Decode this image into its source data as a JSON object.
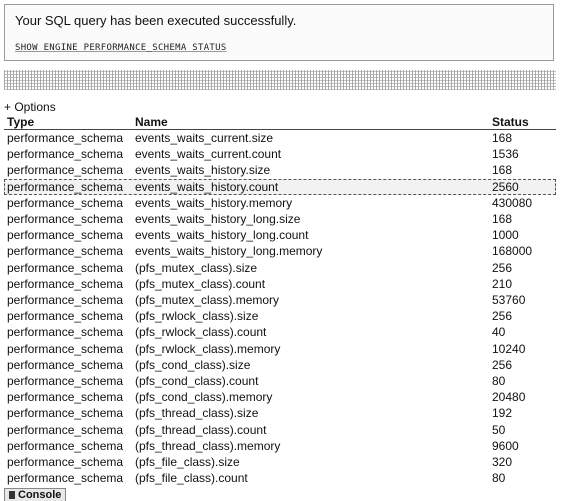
{
  "message": {
    "success_text": "Your SQL query has been executed successfully.",
    "sql": "SHOW ENGINE PERFORMANCE_SCHEMA STATUS"
  },
  "options_label": "+ Options",
  "table": {
    "columns": [
      "Type",
      "Name",
      "Status"
    ],
    "highlighted_row": 3,
    "rows": [
      [
        "performance_schema",
        "events_waits_current.size",
        "168"
      ],
      [
        "performance_schema",
        "events_waits_current.count",
        "1536"
      ],
      [
        "performance_schema",
        "events_waits_history.size",
        "168"
      ],
      [
        "performance_schema",
        "events_waits_history.count",
        "2560"
      ],
      [
        "performance_schema",
        "events_waits_history.memory",
        "430080"
      ],
      [
        "performance_schema",
        "events_waits_history_long.size",
        "168"
      ],
      [
        "performance_schema",
        "events_waits_history_long.count",
        "1000"
      ],
      [
        "performance_schema",
        "events_waits_history_long.memory",
        "168000"
      ],
      [
        "performance_schema",
        "(pfs_mutex_class).size",
        "256"
      ],
      [
        "performance_schema",
        "(pfs_mutex_class).count",
        "210"
      ],
      [
        "performance_schema",
        "(pfs_mutex_class).memory",
        "53760"
      ],
      [
        "performance_schema",
        "(pfs_rwlock_class).size",
        "256"
      ],
      [
        "performance_schema",
        "(pfs_rwlock_class).count",
        "40"
      ],
      [
        "performance_schema",
        "(pfs_rwlock_class).memory",
        "10240"
      ],
      [
        "performance_schema",
        "(pfs_cond_class).size",
        "256"
      ],
      [
        "performance_schema",
        "(pfs_cond_class).count",
        "80"
      ],
      [
        "performance_schema",
        "(pfs_cond_class).memory",
        "20480"
      ],
      [
        "performance_schema",
        "(pfs_thread_class).size",
        "192"
      ],
      [
        "performance_schema",
        "(pfs_thread_class).count",
        "50"
      ],
      [
        "performance_schema",
        "(pfs_thread_class).memory",
        "9600"
      ],
      [
        "performance_schema",
        "(pfs_file_class).size",
        "320"
      ],
      [
        "performance_schema",
        "(pfs_file_class).count",
        "80"
      ]
    ]
  },
  "console_tab": "Console"
}
